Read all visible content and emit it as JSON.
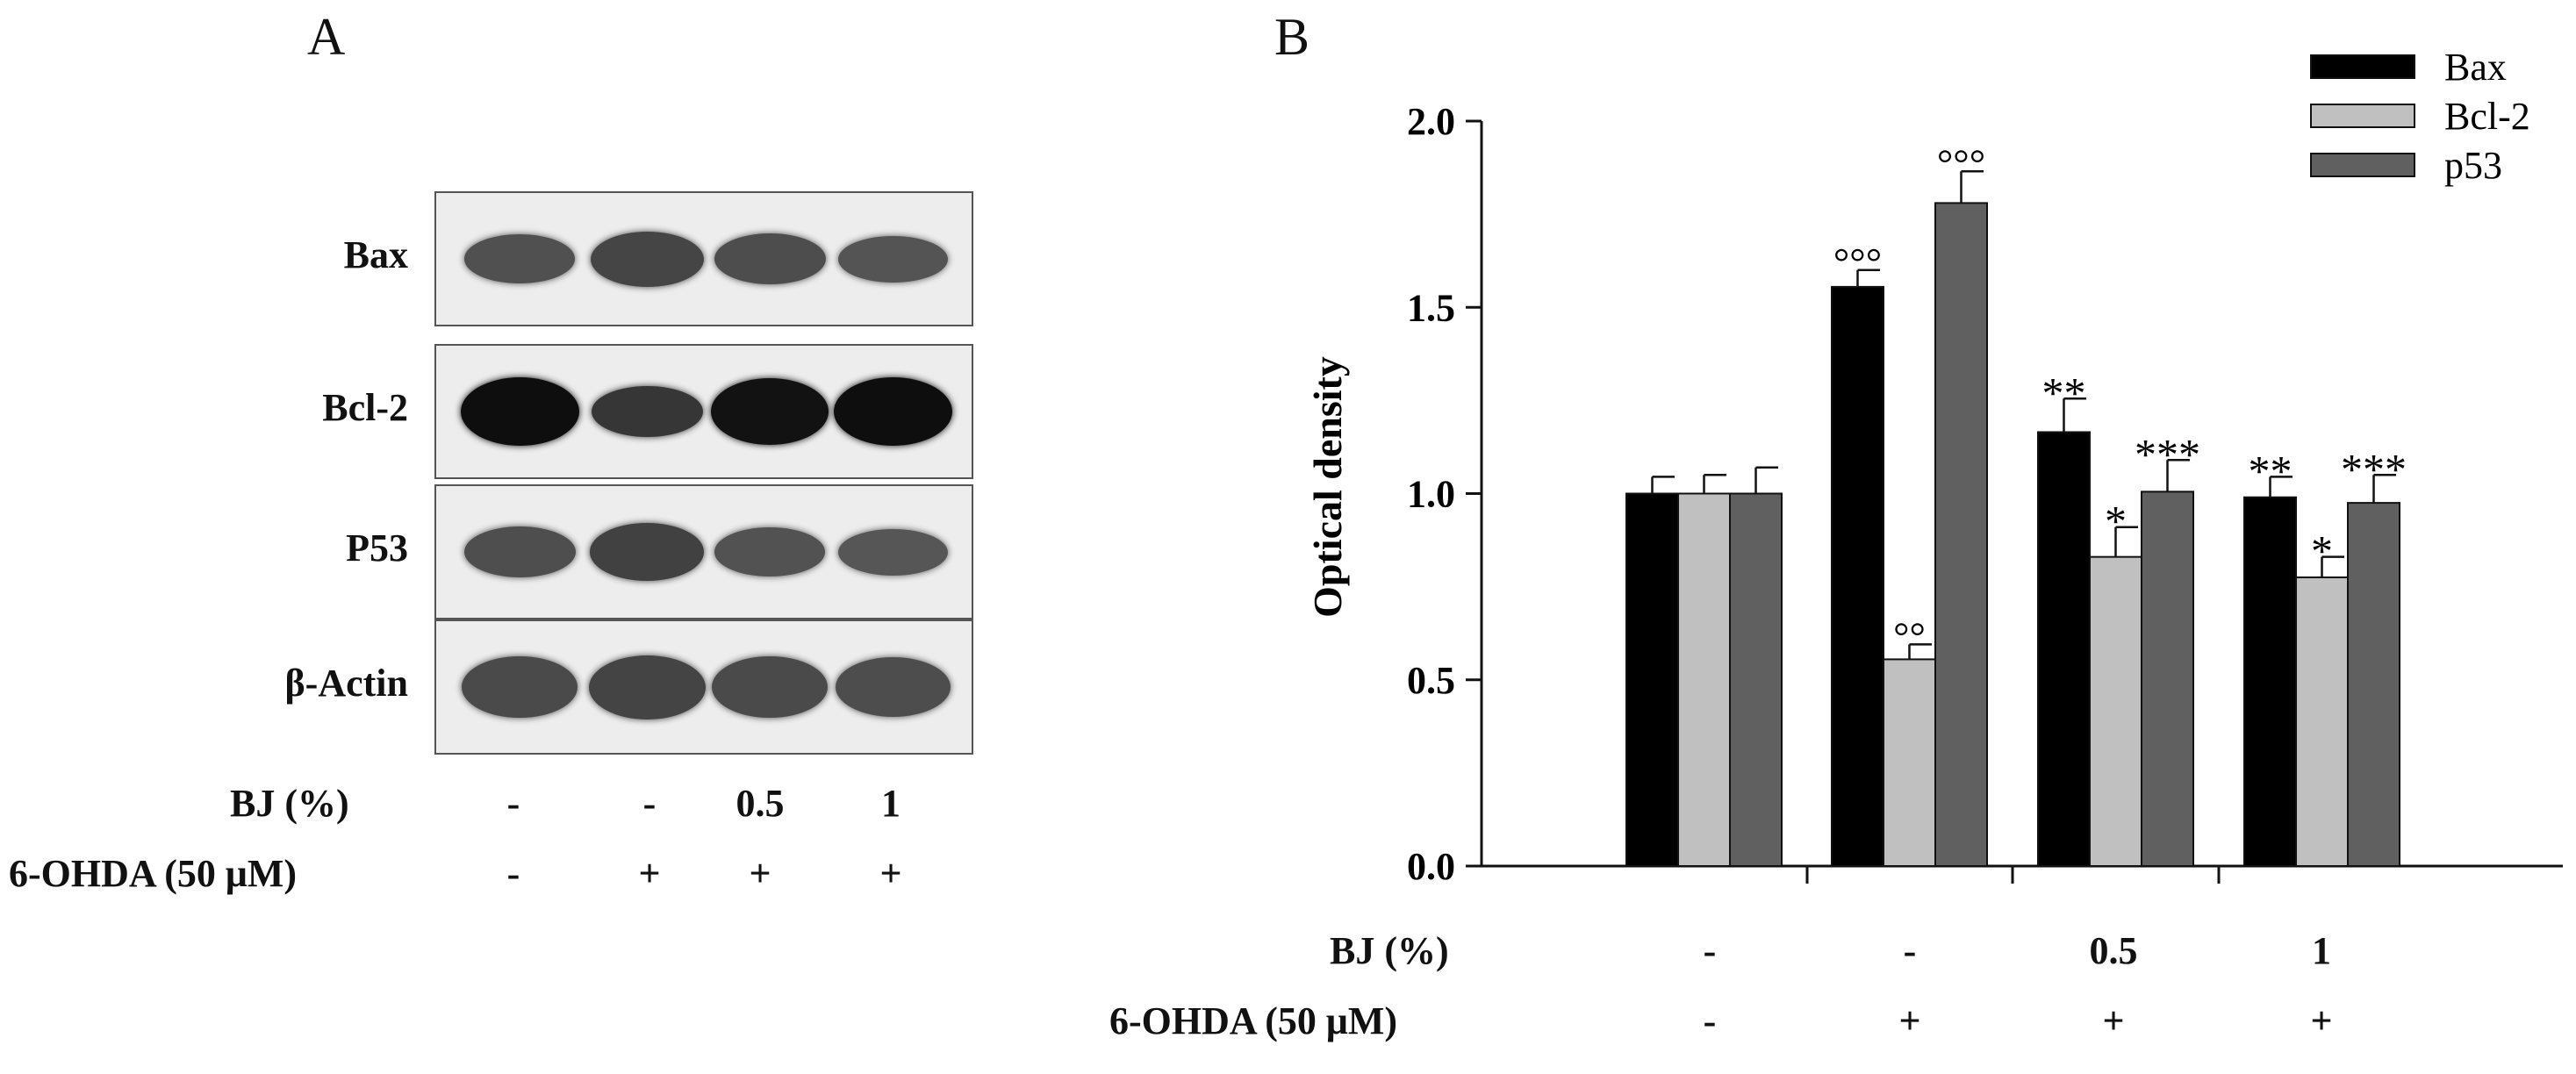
{
  "panels": {
    "a": "A",
    "b": "B"
  },
  "western_blot": {
    "rows": [
      {
        "label": "Bax",
        "bands": [
          0.55,
          0.7,
          0.6,
          0.5
        ],
        "color": "#2a2a2a"
      },
      {
        "label": "Bcl-2",
        "bands": [
          1.0,
          0.6,
          0.95,
          1.0
        ],
        "color": "#0e0e0e"
      },
      {
        "label": "P53",
        "bands": [
          0.6,
          0.75,
          0.55,
          0.5
        ],
        "color": "#2c2c2c"
      },
      {
        "label": "β-Actin",
        "bands": [
          0.85,
          0.9,
          0.85,
          0.8
        ],
        "color": "#3e3e3e"
      }
    ]
  },
  "conditions": [
    {
      "label": "BJ (%)",
      "values": [
        "-",
        "-",
        "0.5",
        "1"
      ]
    },
    {
      "label": "6-OHDA (50 μM)",
      "values": [
        "-",
        "+",
        "+",
        "+"
      ]
    }
  ],
  "chart_data": {
    "type": "bar",
    "ylabel": "Optical density",
    "ylim": [
      0,
      2.0
    ],
    "yticks": [
      "0.0",
      "0.5",
      "1.0",
      "1.5",
      "2.0"
    ],
    "groups": 4,
    "series": [
      {
        "name": "Bax",
        "color": "#000000",
        "values": [
          1.0,
          1.555,
          1.165,
          0.99
        ],
        "errors": [
          0.045,
          0.045,
          0.09,
          0.055
        ],
        "annotations": [
          "",
          "°°°",
          "**",
          "**"
        ]
      },
      {
        "name": "Bcl-2",
        "color": "#c0c0c0",
        "values": [
          1.0,
          0.555,
          0.83,
          0.775
        ],
        "errors": [
          0.05,
          0.04,
          0.08,
          0.055
        ],
        "annotations": [
          "",
          "°°",
          "*",
          "*"
        ]
      },
      {
        "name": "p53",
        "color": "#606060",
        "values": [
          1.0,
          1.78,
          1.005,
          0.975
        ],
        "errors": [
          0.07,
          0.085,
          0.085,
          0.075
        ],
        "annotations": [
          "",
          "°°°",
          "***",
          "***"
        ]
      }
    ],
    "legend_position": "top-right"
  }
}
